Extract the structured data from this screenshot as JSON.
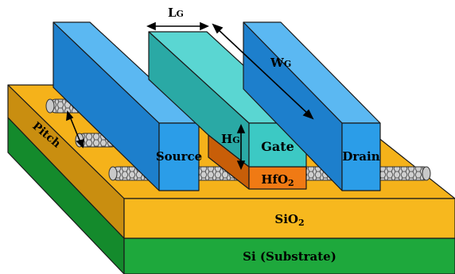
{
  "labels": {
    "lg": "L",
    "lg_sub": "G",
    "wg": "W",
    "wg_sub": "G",
    "hg": "H",
    "hg_sub": "G",
    "source": "Source",
    "gate": "Gate",
    "drain": "Drain",
    "hfo2": "HfO",
    "hfo2_sub": "2",
    "sio2": "SiO",
    "sio2_sub": "2",
    "si": "Si (Substrate)",
    "pitch": "Pitch"
  },
  "colors": {
    "electrode_front": "#2b9de8",
    "electrode_side": "#1d7fcc",
    "electrode_top": "#5bb8f2",
    "gate_front": "#3cc9c4",
    "gate_side": "#2aa9a5",
    "gate_top": "#5ad6d2",
    "hfo2": "#f07a14",
    "hfo2_dark": "#c85e08",
    "sio2_top": "#f5b21a",
    "sio2_front": "#f7b81e",
    "sio2_side": "#c98e10",
    "si_front": "#1ea83c",
    "si_side": "#148a2c"
  }
}
